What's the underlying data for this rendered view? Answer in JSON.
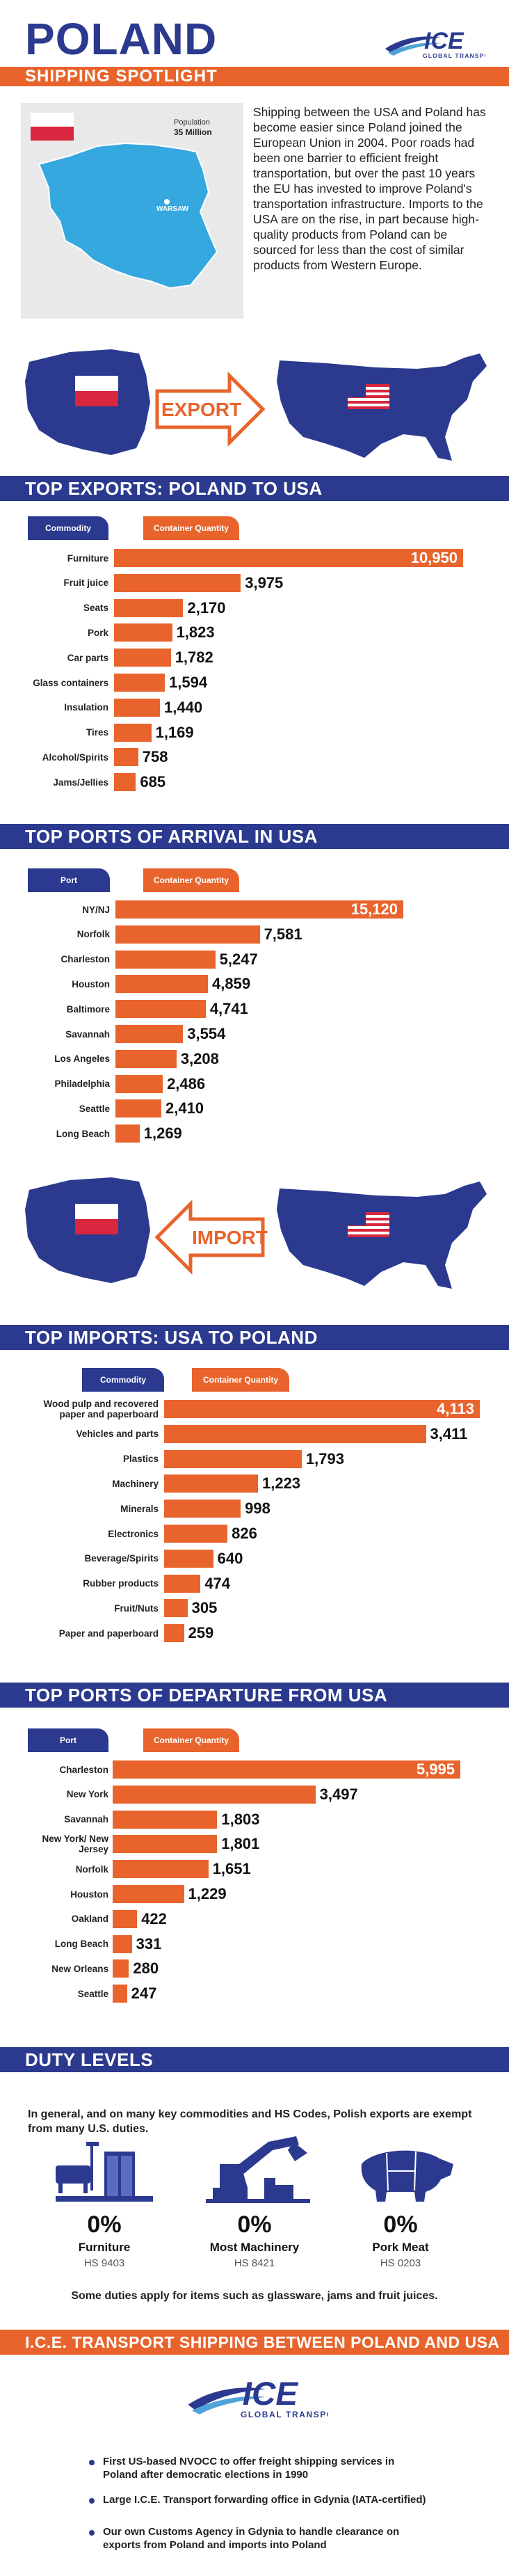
{
  "header": {
    "title": "POLAND",
    "subtitle": "SHIPPING SPOTLIGHT",
    "logo": {
      "name": "ICE",
      "tagline": "GLOBAL TRANSPORT"
    }
  },
  "map": {
    "population_label": "Population",
    "population_value": "35 Million",
    "capital": "WARSAW"
  },
  "intro": "Shipping between the USA and Poland has become easier since Poland joined the European Union in 2004. Poor roads had been one barrier to efficient freight transportation, but over the past 10 years the EU has invested to improve Poland's transportation infrastructure. Imports to the USA are on the rise, in part because high-quality products from Poland can be sourced for less than the cost of similar products from Western Europe.",
  "export_label": "EXPORT",
  "import_label": "IMPORT",
  "colors": {
    "blue": "#2b3a8f",
    "orange": "#e8642c",
    "red": "#d7263d"
  },
  "chart_data": [
    {
      "type": "bar",
      "title": "TOP EXPORTS: POLAND TO USA",
      "col1": "Commodity",
      "col2": "Container Quantity",
      "categories": [
        "Furniture",
        "Fruit juice",
        "Seats",
        "Pork",
        "Car parts",
        "Glass containers",
        "Insulation",
        "Tires",
        "Alcohol/Spirits",
        "Jams/Jellies"
      ],
      "values": [
        10950,
        3975,
        2170,
        1823,
        1782,
        1594,
        1440,
        1169,
        758,
        685
      ],
      "labels": [
        "10,950",
        "3,975",
        "2,170",
        "1,823",
        "1,782",
        "1,594",
        "1,440",
        "1,169",
        "758",
        "685"
      ]
    },
    {
      "type": "bar",
      "title": "TOP PORTS OF ARRIVAL IN USA",
      "col1": "Port",
      "col2": "Container Quantity",
      "categories": [
        "NY/NJ",
        "Norfolk",
        "Charleston",
        "Houston",
        "Baltimore",
        "Savannah",
        "Los Angeles",
        "Philadelphia",
        "Seattle",
        "Long Beach"
      ],
      "values": [
        15120,
        7581,
        5247,
        4859,
        4741,
        3554,
        3208,
        2486,
        2410,
        1269
      ],
      "labels": [
        "15,120",
        "7,581",
        "5,247",
        "4,859",
        "4,741",
        "3,554",
        "3,208",
        "2,486",
        "2,410",
        "1,269"
      ]
    },
    {
      "type": "bar",
      "title": "TOP IMPORTS: USA TO POLAND",
      "col1": "Commodity",
      "col2": "Container Quantity",
      "categories": [
        "Wood pulp and recovered paper and paperboard",
        "Vehicles and parts",
        "Plastics",
        "Machinery",
        "Minerals",
        "Electronics",
        "Beverage/Spirits",
        "Rubber products",
        "Fruit/Nuts",
        "Paper and paperboard"
      ],
      "values": [
        4113,
        3411,
        1793,
        1223,
        998,
        826,
        640,
        474,
        305,
        259
      ],
      "labels": [
        "4,113",
        "3,411",
        "1,793",
        "1,223",
        "998",
        "826",
        "640",
        "474",
        "305",
        "259"
      ]
    },
    {
      "type": "bar",
      "title": "TOP PORTS OF DEPARTURE FROM USA",
      "col1": "Port",
      "col2": "Container Quantity",
      "categories": [
        "Charleston",
        "New York",
        "Savannah",
        "New York/ New Jersey",
        "Norfolk",
        "Houston",
        "Oakland",
        "Long Beach",
        "New Orleans",
        "Seattle"
      ],
      "values": [
        5995,
        3497,
        1803,
        1801,
        1651,
        1229,
        422,
        331,
        280,
        247
      ],
      "labels": [
        "5,995",
        "3,497",
        "1,803",
        "1,801",
        "1,651",
        "1,229",
        "422",
        "331",
        "280",
        "247"
      ]
    }
  ],
  "duty": {
    "title": "DUTY LEVELS",
    "text": "In general, and on many key commodities and HS Codes, Polish exports are exempt from many U.S. duties.",
    "items": [
      {
        "pct": "0%",
        "name": "Furniture",
        "hs": "HS 9403",
        "icon": "furniture-icon"
      },
      {
        "pct": "0%",
        "name": "Most Machinery",
        "hs": "HS 8421",
        "icon": "machinery-icon"
      },
      {
        "pct": "0%",
        "name": "Pork Meat",
        "hs": "HS 0203",
        "icon": "pig-icon"
      }
    ],
    "note": "Some duties apply for items such as glassware, jams and fruit juices."
  },
  "bottom": {
    "title": "I.C.E. TRANSPORT SHIPPING BETWEEN POLAND AND USA",
    "bullets": [
      "First US-based NVOCC to offer freight shipping services in Poland after democratic elections in 1990",
      "Large I.C.E. Transport forwarding office in Gdynia (IATA-certified)",
      "Our own Customs Agency in Gdynia to handle clearance on exports from Poland and imports into Poland"
    ]
  }
}
